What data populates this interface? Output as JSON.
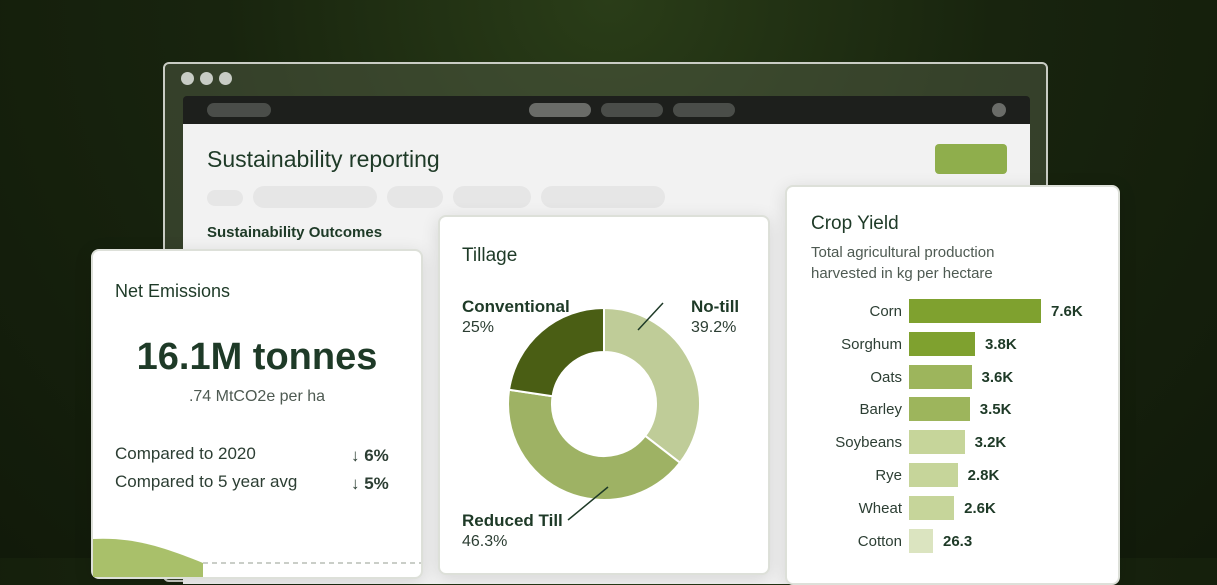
{
  "page": {
    "title": "Sustainability reporting",
    "section_title": "Sustainability Outcomes"
  },
  "net_emissions": {
    "title": "Net Emissions",
    "value": "16.1M tonnes",
    "unit_line": ".74 MtCO2e per ha",
    "comparisons": [
      {
        "label": "Compared to 2020",
        "value": "↓ 6%"
      },
      {
        "label": "Compared to 5 year avg",
        "value": "↓ 5%"
      }
    ]
  },
  "tillage": {
    "title": "Tillage",
    "labels": [
      {
        "name": "Conventional",
        "pct": "25%"
      },
      {
        "name": "No-till",
        "pct": "39.2%"
      },
      {
        "name": "Reduced Till",
        "pct": "46.3%"
      }
    ]
  },
  "crop_yield": {
    "title": "Crop Yield",
    "subtitle": "Total agricultural production harvested in kg per hectare"
  },
  "chart_data": [
    {
      "type": "pie",
      "categories": [
        "No-till",
        "Reduced Till",
        "Conventional"
      ],
      "values": [
        39.2,
        46.3,
        25
      ],
      "colors": [
        "#bfcc98",
        "#9eb264",
        "#4a5e14"
      ]
    },
    {
      "type": "bar",
      "orientation": "horizontal",
      "categories": [
        "Corn",
        "Sorghum",
        "Oats",
        "Barley",
        "Soybeans",
        "Rye",
        "Wheat",
        "Cotton"
      ],
      "values": [
        7600,
        3800,
        3600,
        3500,
        3200,
        2800,
        2600,
        26.3
      ],
      "data_labels": [
        "7.6K",
        "3.8K",
        "3.6K",
        "3.5K",
        "3.2K",
        "2.8K",
        "2.6K",
        "26.3"
      ],
      "colors": [
        "#7fa12f",
        "#7fa12f",
        "#9db55c",
        "#9db55c",
        "#c6d59a",
        "#c6d59a",
        "#c6d59a",
        "#dbe4c0"
      ]
    }
  ]
}
